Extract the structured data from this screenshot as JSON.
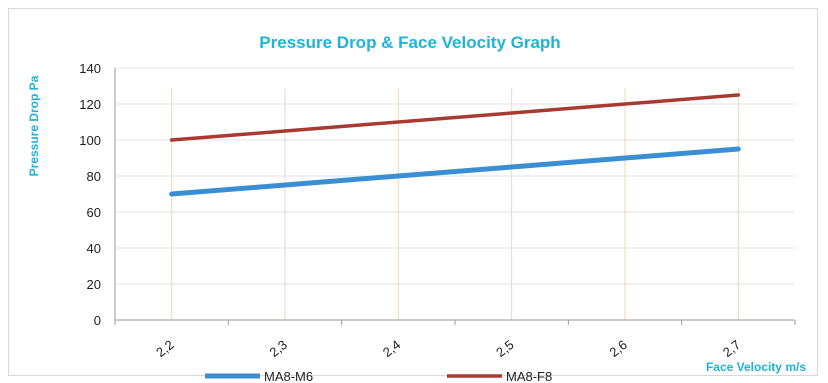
{
  "chart_data": {
    "type": "line",
    "title": "Pressure Drop  &  Face Velocity  Graph",
    "xlabel": "Face Velocity  m/s",
    "ylabel": "Pressure Drop  Pa",
    "x": [
      "2,2",
      "2,3",
      "2,4",
      "2,5",
      "2,6",
      "2,7"
    ],
    "ylim": [
      0,
      140
    ],
    "yticks": [
      0,
      20,
      40,
      60,
      80,
      100,
      120,
      140
    ],
    "grid": true,
    "legend": "bottom",
    "series": [
      {
        "name": "MA8-M6",
        "values": [
          70,
          75,
          80,
          85,
          90,
          95
        ],
        "color": "#3a8fd4"
      },
      {
        "name": "MA8-F8",
        "values": [
          100,
          105,
          110,
          115,
          120,
          125
        ],
        "color": "#a83a32"
      }
    ]
  }
}
